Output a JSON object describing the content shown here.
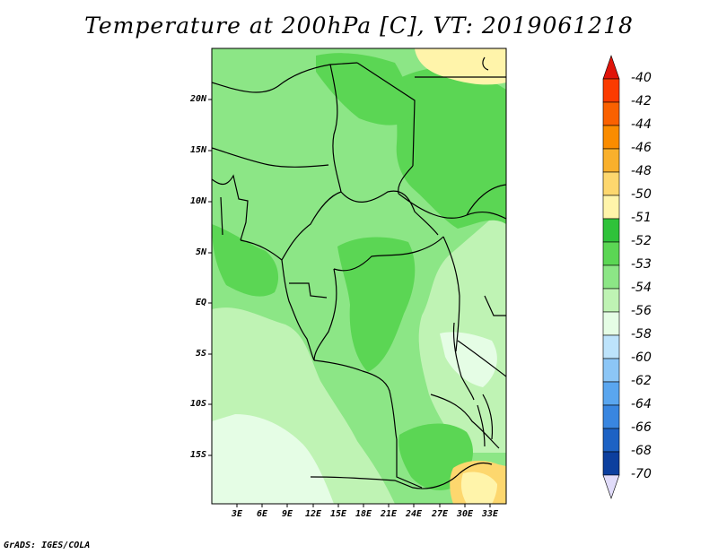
{
  "title": "Temperature at 200hPa [C], VT: 2019061218",
  "credit": "GrADS: IGES/COLA",
  "map": {
    "lat_ticks": [
      "20N",
      "15N",
      "10N",
      "5N",
      "EQ",
      "5S",
      "10S",
      "15S"
    ],
    "lon_ticks": [
      "3E",
      "6E",
      "9E",
      "12E",
      "15E",
      "18E",
      "21E",
      "24E",
      "27E",
      "30E",
      "33E"
    ]
  },
  "colorbar": {
    "labels": [
      "-40",
      "-42",
      "-44",
      "-46",
      "-48",
      "-50",
      "-51",
      "-52",
      "-53",
      "-54",
      "-56",
      "-58",
      "-60",
      "-62",
      "-64",
      "-66",
      "-68",
      "-70"
    ],
    "colors": [
      "#fb3b00",
      "#fa6100",
      "#fa8c00",
      "#f9b02c",
      "#fdd76e",
      "#fff4aa",
      "#2fc23a",
      "#5bd654",
      "#8ce686",
      "#bff3b4",
      "#e5fde5",
      "#bde3fb",
      "#8cc6f6",
      "#5aa6ef",
      "#3986e0",
      "#1d62c4",
      "#0c3f9e",
      "#06156d"
    ],
    "top_color": "#e0140a",
    "bottom_color": "#e1dcfa"
  }
}
